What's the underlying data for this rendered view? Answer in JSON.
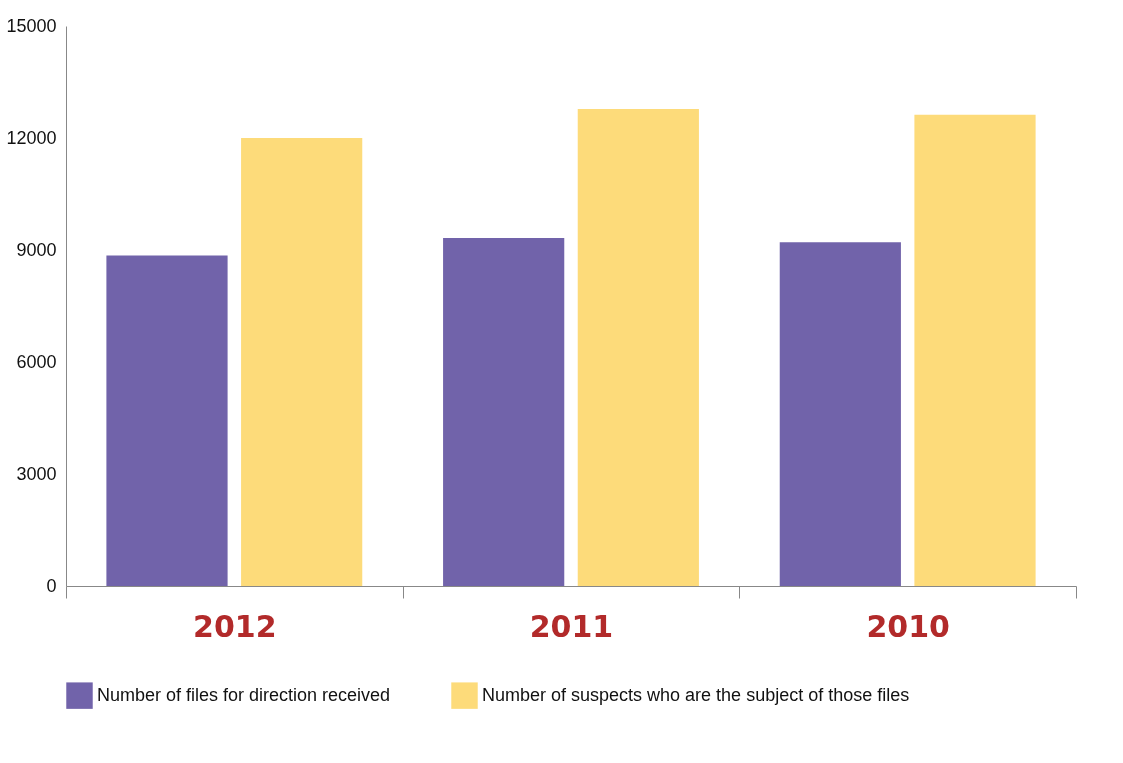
{
  "chart_data": {
    "type": "bar",
    "categories": [
      "2012",
      "2011",
      "2010"
    ],
    "series": [
      {
        "name": "Number of files for direction received",
        "color": "#7163aa",
        "values": [
          8850,
          9320,
          9210
        ]
      },
      {
        "name": "Number of suspects who are the subject of those files",
        "color": "#fddb7a",
        "values": [
          12000,
          12780,
          12620
        ]
      }
    ],
    "ylim": [
      0,
      15000
    ],
    "yticks": [
      0,
      3000,
      6000,
      9000,
      12000,
      15000
    ],
    "grid": false,
    "legend": "bottom"
  }
}
